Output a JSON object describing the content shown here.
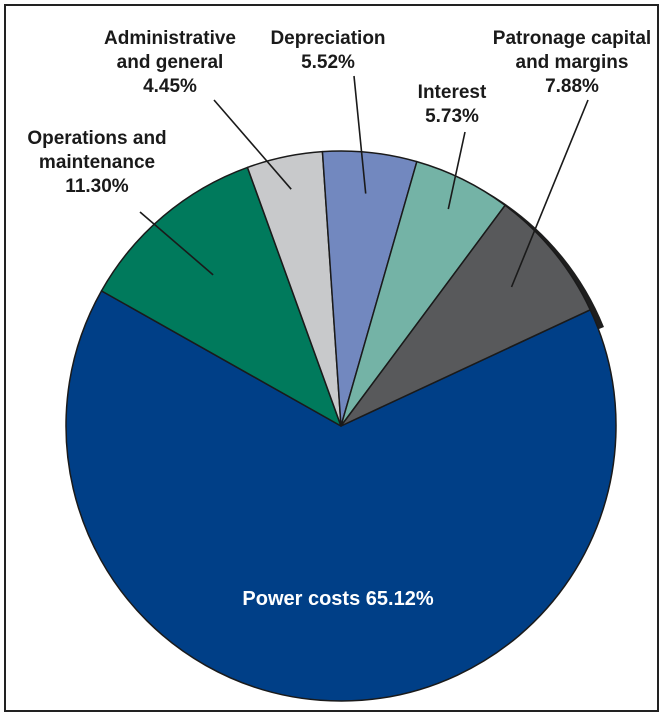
{
  "chart_data": {
    "type": "pie",
    "slices": [
      {
        "label": "Power costs",
        "value_text": "65.12%",
        "value": 65.12,
        "color": "#003f87"
      },
      {
        "label": "Operations and maintenance",
        "value_text": "11.30%",
        "value": 11.3,
        "color": "#007a5c"
      },
      {
        "label": "Administrative and general",
        "value_text": "4.45%",
        "value": 4.45,
        "color": "#c8c9cb"
      },
      {
        "label": "Depreciation",
        "value_text": "5.52%",
        "value": 5.52,
        "color": "#7288bf"
      },
      {
        "label": "Interest",
        "value_text": "5.73%",
        "value": 5.73,
        "color": "#74b3a6"
      },
      {
        "label": "Patronage capital and margins",
        "value_text": "7.88%",
        "value": 7.88,
        "color": "#58595b"
      }
    ],
    "labels": {
      "power": "Power costs 65.12%",
      "operations_line1": "Operations and",
      "operations_line2": "maintenance",
      "operations_value": "11.30%",
      "admin_line1": "Administrative",
      "admin_line2": "and general",
      "admin_value": "4.45%",
      "depreciation_line1": "Depreciation",
      "depreciation_value": "5.52%",
      "interest_line1": "Interest",
      "interest_value": "5.73%",
      "patronage_line1": "Patronage capital",
      "patronage_line2": "and margins",
      "patronage_value": "7.88%"
    }
  }
}
